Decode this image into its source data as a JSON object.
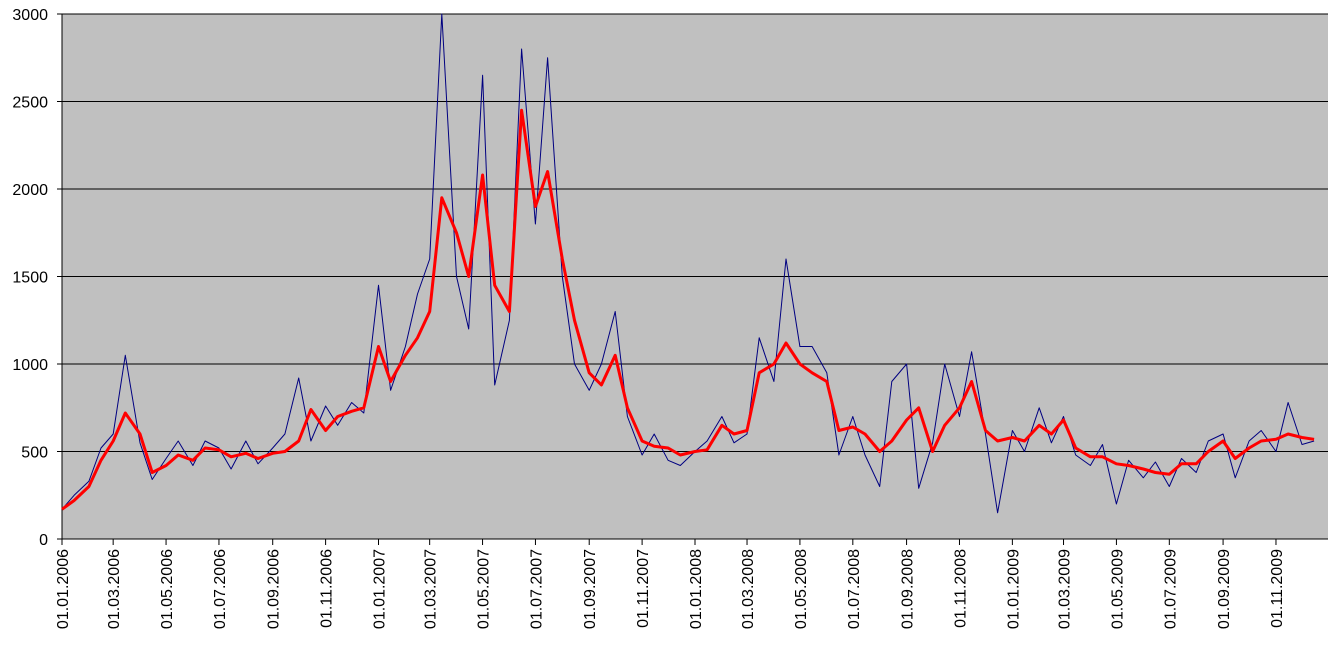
{
  "chart_data": {
    "type": "line",
    "x": [
      "01.01.2006",
      "15.01.2006",
      "01.02.2006",
      "15.02.2006",
      "01.03.2006",
      "15.03.2006",
      "01.04.2006",
      "15.04.2006",
      "01.05.2006",
      "15.05.2006",
      "01.06.2006",
      "15.06.2006",
      "01.07.2006",
      "15.07.2006",
      "01.08.2006",
      "15.08.2006",
      "01.09.2006",
      "15.09.2006",
      "01.10.2006",
      "15.10.2006",
      "01.11.2006",
      "15.11.2006",
      "01.12.2006",
      "15.12.2006",
      "01.01.2007",
      "15.01.2007",
      "01.02.2007",
      "15.02.2007",
      "01.03.2007",
      "15.03.2007",
      "01.04.2007",
      "15.04.2007",
      "01.05.2007",
      "15.05.2007",
      "01.06.2007",
      "15.06.2007",
      "01.07.2007",
      "15.07.2007",
      "01.08.2007",
      "15.08.2007",
      "01.09.2007",
      "15.09.2007",
      "01.10.2007",
      "15.10.2007",
      "01.11.2007",
      "15.11.2007",
      "01.12.2007",
      "15.12.2007",
      "01.01.2008",
      "15.01.2008",
      "01.02.2008",
      "15.02.2008",
      "01.03.2008",
      "15.03.2008",
      "01.04.2008",
      "15.04.2008",
      "01.05.2008",
      "15.05.2008",
      "01.06.2008",
      "15.06.2008",
      "01.07.2008",
      "15.07.2008",
      "01.08.2008",
      "15.08.2008",
      "01.09.2008",
      "15.09.2008",
      "01.10.2008",
      "15.10.2008",
      "01.11.2008",
      "15.11.2008",
      "01.12.2008",
      "15.12.2008",
      "01.01.2009",
      "15.01.2009",
      "01.02.2009",
      "15.02.2009",
      "01.03.2009",
      "15.03.2009",
      "01.04.2009",
      "15.04.2009",
      "01.05.2009",
      "15.05.2009",
      "01.06.2009",
      "15.06.2009",
      "01.07.2009",
      "15.07.2009",
      "01.08.2009",
      "15.08.2009",
      "01.09.2009",
      "15.09.2009",
      "01.10.2009",
      "15.10.2009",
      "01.11.2009",
      "15.11.2009",
      "01.12.2009",
      "15.12.2009"
    ],
    "series": [
      {
        "color": "#000080",
        "values": [
          170,
          250,
          330,
          520,
          600,
          1050,
          550,
          340,
          460,
          560,
          420,
          560,
          520,
          400,
          560,
          430,
          520,
          600,
          920,
          560,
          760,
          650,
          780,
          720,
          1450,
          850,
          1100,
          1400,
          1600,
          3000,
          1500,
          1200,
          2650,
          880,
          1250,
          2800,
          1800,
          2750,
          1500,
          1000,
          850,
          1000,
          1300,
          700,
          480,
          600,
          450,
          420,
          500,
          560,
          700,
          550,
          600,
          1150,
          900,
          1600,
          1100,
          1100,
          950,
          480,
          700,
          480,
          300,
          900,
          1000,
          290,
          550,
          1000,
          700,
          1070,
          600,
          150,
          620,
          500,
          750,
          550,
          700,
          480,
          420,
          540,
          200,
          450,
          350,
          440,
          300,
          460,
          380,
          560,
          600,
          350,
          560,
          620,
          500,
          780,
          540,
          560
        ]
      },
      {
        "color": "#ff0000",
        "values": [
          170,
          220,
          300,
          450,
          560,
          720,
          600,
          380,
          420,
          480,
          450,
          520,
          510,
          470,
          490,
          460,
          490,
          500,
          560,
          740,
          620,
          700,
          730,
          750,
          1100,
          900,
          1050,
          1150,
          1300,
          1950,
          1750,
          1500,
          2080,
          1450,
          1300,
          2450,
          1900,
          2100,
          1600,
          1250,
          950,
          880,
          1050,
          750,
          560,
          530,
          520,
          480,
          500,
          510,
          650,
          600,
          620,
          950,
          1000,
          1120,
          1000,
          950,
          900,
          620,
          640,
          600,
          500,
          560,
          680,
          750,
          500,
          650,
          750,
          900,
          620,
          560,
          580,
          560,
          650,
          600,
          680,
          520,
          470,
          470,
          430,
          420,
          400,
          380,
          370,
          430,
          430,
          500,
          560,
          460,
          520,
          560,
          570,
          600,
          580,
          570
        ]
      }
    ],
    "xlim": [
      "01.01.2006",
      "31.12.2009"
    ],
    "xticks": [
      "01.01.2006",
      "01.03.2006",
      "01.05.2006",
      "01.07.2006",
      "01.09.2006",
      "01.11.2006",
      "01.01.2007",
      "01.03.2007",
      "01.05.2007",
      "01.07.2007",
      "01.09.2007",
      "01.11.2007",
      "01.01.2008",
      "01.03.2008",
      "01.05.2008",
      "01.07.2008",
      "01.09.2008",
      "01.11.2008",
      "01.01.2009",
      "01.03.2009",
      "01.05.2009",
      "01.07.2009",
      "01.09.2009",
      "01.11.2009"
    ],
    "ylim": [
      0,
      3000
    ],
    "yticks": [
      0,
      500,
      1000,
      1500,
      2000,
      2500,
      3000
    ],
    "grid": true
  }
}
